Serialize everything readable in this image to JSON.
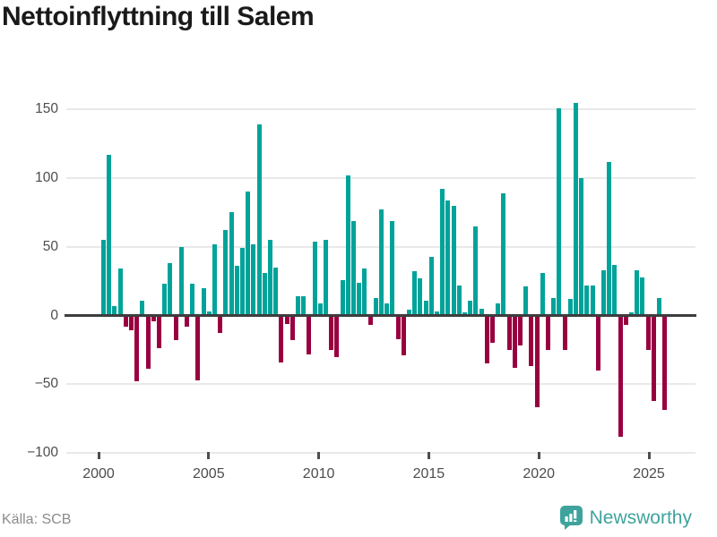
{
  "header": {
    "title": "Nettoinflyttning till Salem"
  },
  "footer": {
    "source": "Källa: SCB",
    "brand": "Newsworthy"
  },
  "colors": {
    "positive": "#00A39A",
    "negative": "#990040",
    "grid": "#E9E9E9",
    "zero_line": "#3D3D3D",
    "title_text": "#1A1A1A",
    "axis_text": "#4D4D4D",
    "source_text": "#8C8C8C",
    "brand_teal": "#3FA39D"
  },
  "chart_data": {
    "type": "bar",
    "title": "Nettoinflyttning till Salem",
    "series_name": "Nettoinflyttning (personer per kvartal)",
    "ylim": [
      -100,
      150
    ],
    "grid": "horizontal",
    "legend": "none",
    "positive_color": "#00A39A",
    "negative_color": "#990040",
    "y_ticks": [
      {
        "label": "150",
        "value": 150
      },
      {
        "label": "100",
        "value": 100
      },
      {
        "label": "50",
        "value": 50
      },
      {
        "label": "0",
        "value": 0
      },
      {
        "label": "−50",
        "value": -50
      },
      {
        "label": "−100",
        "value": -100
      }
    ],
    "x_ticks": [
      {
        "label": "2000",
        "year": 2000
      },
      {
        "label": "2005",
        "year": 2005
      },
      {
        "label": "2010",
        "year": 2010
      },
      {
        "label": "2015",
        "year": 2015
      },
      {
        "label": "2020",
        "year": 2020
      },
      {
        "label": "2025",
        "year": 2025
      }
    ],
    "x": [
      "2000Q1",
      "2000Q2",
      "2000Q3",
      "2000Q4",
      "2001Q1",
      "2001Q2",
      "2001Q3",
      "2001Q4",
      "2002Q1",
      "2002Q2",
      "2002Q3",
      "2002Q4",
      "2003Q1",
      "2003Q2",
      "2003Q3",
      "2003Q4",
      "2004Q1",
      "2004Q2",
      "2004Q3",
      "2004Q4",
      "2005Q1",
      "2005Q2",
      "2005Q3",
      "2005Q4",
      "2006Q1",
      "2006Q2",
      "2006Q3",
      "2006Q4",
      "2007Q1",
      "2007Q2",
      "2007Q3",
      "2007Q4",
      "2008Q1",
      "2008Q2",
      "2008Q3",
      "2008Q4",
      "2009Q1",
      "2009Q2",
      "2009Q3",
      "2009Q4",
      "2010Q1",
      "2010Q2",
      "2010Q3",
      "2010Q4",
      "2011Q1",
      "2011Q2",
      "2011Q3",
      "2011Q4",
      "2012Q1",
      "2012Q2",
      "2012Q3",
      "2012Q4",
      "2013Q1",
      "2013Q2",
      "2013Q3",
      "2013Q4",
      "2014Q1",
      "2014Q2",
      "2014Q3",
      "2014Q4",
      "2015Q1",
      "2015Q2",
      "2015Q3",
      "2015Q4",
      "2016Q1",
      "2016Q2",
      "2016Q3",
      "2016Q4",
      "2017Q1",
      "2017Q2",
      "2017Q3",
      "2017Q4",
      "2018Q1",
      "2018Q2",
      "2018Q3",
      "2018Q4",
      "2019Q1",
      "2019Q2",
      "2019Q3",
      "2019Q4",
      "2020Q1",
      "2020Q2",
      "2020Q3",
      "2020Q4",
      "2021Q1",
      "2021Q2",
      "2021Q3",
      "2021Q4",
      "2022Q1",
      "2022Q2",
      "2022Q3",
      "2022Q4",
      "2023Q1",
      "2023Q2",
      "2023Q3",
      "2023Q4",
      "2024Q1",
      "2024Q2",
      "2024Q3",
      "2024Q4",
      "2025Q1",
      "2025Q2"
    ],
    "values": [
      55,
      117,
      7,
      34,
      -8,
      -11,
      -48,
      11,
      -39,
      -4,
      -24,
      23,
      38,
      -18,
      50,
      -8,
      23,
      -47,
      20,
      3,
      52,
      -13,
      62,
      75,
      36,
      49,
      90,
      52,
      139,
      31,
      55,
      35,
      -34,
      -6,
      -18,
      14,
      14,
      -28,
      54,
      9,
      55,
      -25,
      -30,
      26,
      102,
      69,
      24,
      34,
      -7,
      13,
      77,
      9,
      69,
      -17,
      -29,
      4,
      32,
      27,
      11,
      43,
      3,
      92,
      84,
      80,
      22,
      2,
      11,
      65,
      5,
      -35,
      -20,
      9,
      89,
      -25,
      -38,
      -22,
      21,
      -37,
      -67,
      31,
      -25,
      13,
      151,
      -25,
      12,
      155,
      100,
      22,
      22,
      -40,
      33,
      112,
      37,
      -88,
      -7,
      2,
      33,
      28,
      -25,
      -62,
      13,
      -69
    ]
  }
}
